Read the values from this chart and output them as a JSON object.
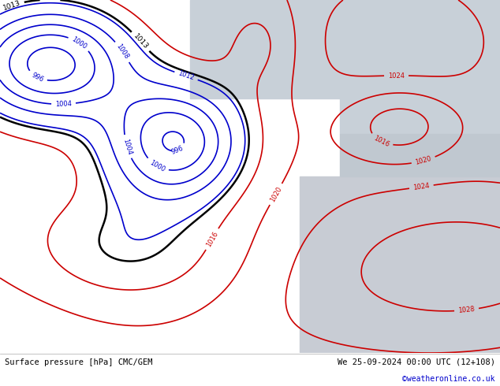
{
  "title_left": "Surface pressure [hPa] CMC/GEM",
  "title_right": "We 25-09-2024 00:00 UTC (12+108)",
  "credit": "©weatheronline.co.uk",
  "land_color": "#c8e8a0",
  "sea_color_upper": "#c8d0d8",
  "sea_color_lower": "#c8ccd4",
  "contour_blue_color": "#0000cc",
  "contour_red_color": "#cc0000",
  "contour_black_color": "#000000",
  "text_credit_color": "#0000cc",
  "figsize": [
    6.34,
    4.9
  ],
  "dpi": 100,
  "levels_blue": [
    996,
    1000,
    1004,
    1008,
    1012
  ],
  "levels_black": [
    1013
  ],
  "levels_red": [
    1016,
    1020,
    1024,
    1028
  ]
}
